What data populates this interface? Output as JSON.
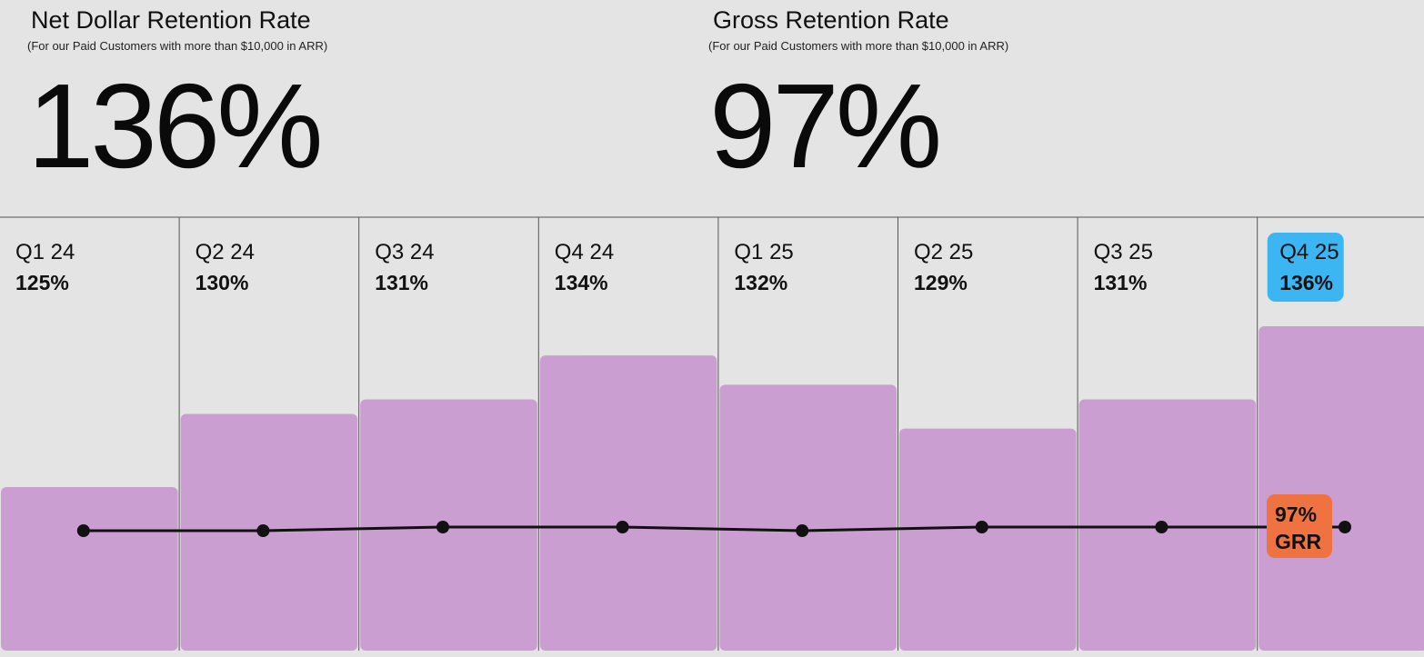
{
  "kpis": [
    {
      "title": "Net Dollar Retention Rate",
      "subtitle": "(For our Paid Customers with more than $10,000 in ARR)",
      "value": "136%"
    },
    {
      "title": "Gross Retention Rate",
      "subtitle": "(For our Paid Customers with more than $10,000 in ARR)",
      "value": "97%"
    }
  ],
  "chart_data": {
    "type": "bar",
    "categories": [
      "Q1 24",
      "Q2 24",
      "Q3 24",
      "Q4 24",
      "Q1 25",
      "Q2 25",
      "Q3 25",
      "Q4 25"
    ],
    "series": [
      {
        "values": [
          125,
          130,
          131,
          134,
          132,
          129,
          131,
          136
        ],
        "value_labels": [
          "125%",
          "130%",
          "131%",
          "134%",
          "132%",
          "129%",
          "131%",
          "136%"
        ],
        "type": "bar",
        "color": "#cb9ed2"
      },
      {
        "values": [
          97,
          97,
          97,
          97,
          97,
          97,
          97,
          97
        ],
        "type": "line",
        "color": "#111111"
      }
    ],
    "highlight": {
      "index": 7,
      "color": "#3cb6f2"
    },
    "line_label": {
      "lines": [
        "97%",
        "GRR"
      ],
      "color": "#ef7340"
    },
    "grid": false,
    "axes_visible": false
  }
}
